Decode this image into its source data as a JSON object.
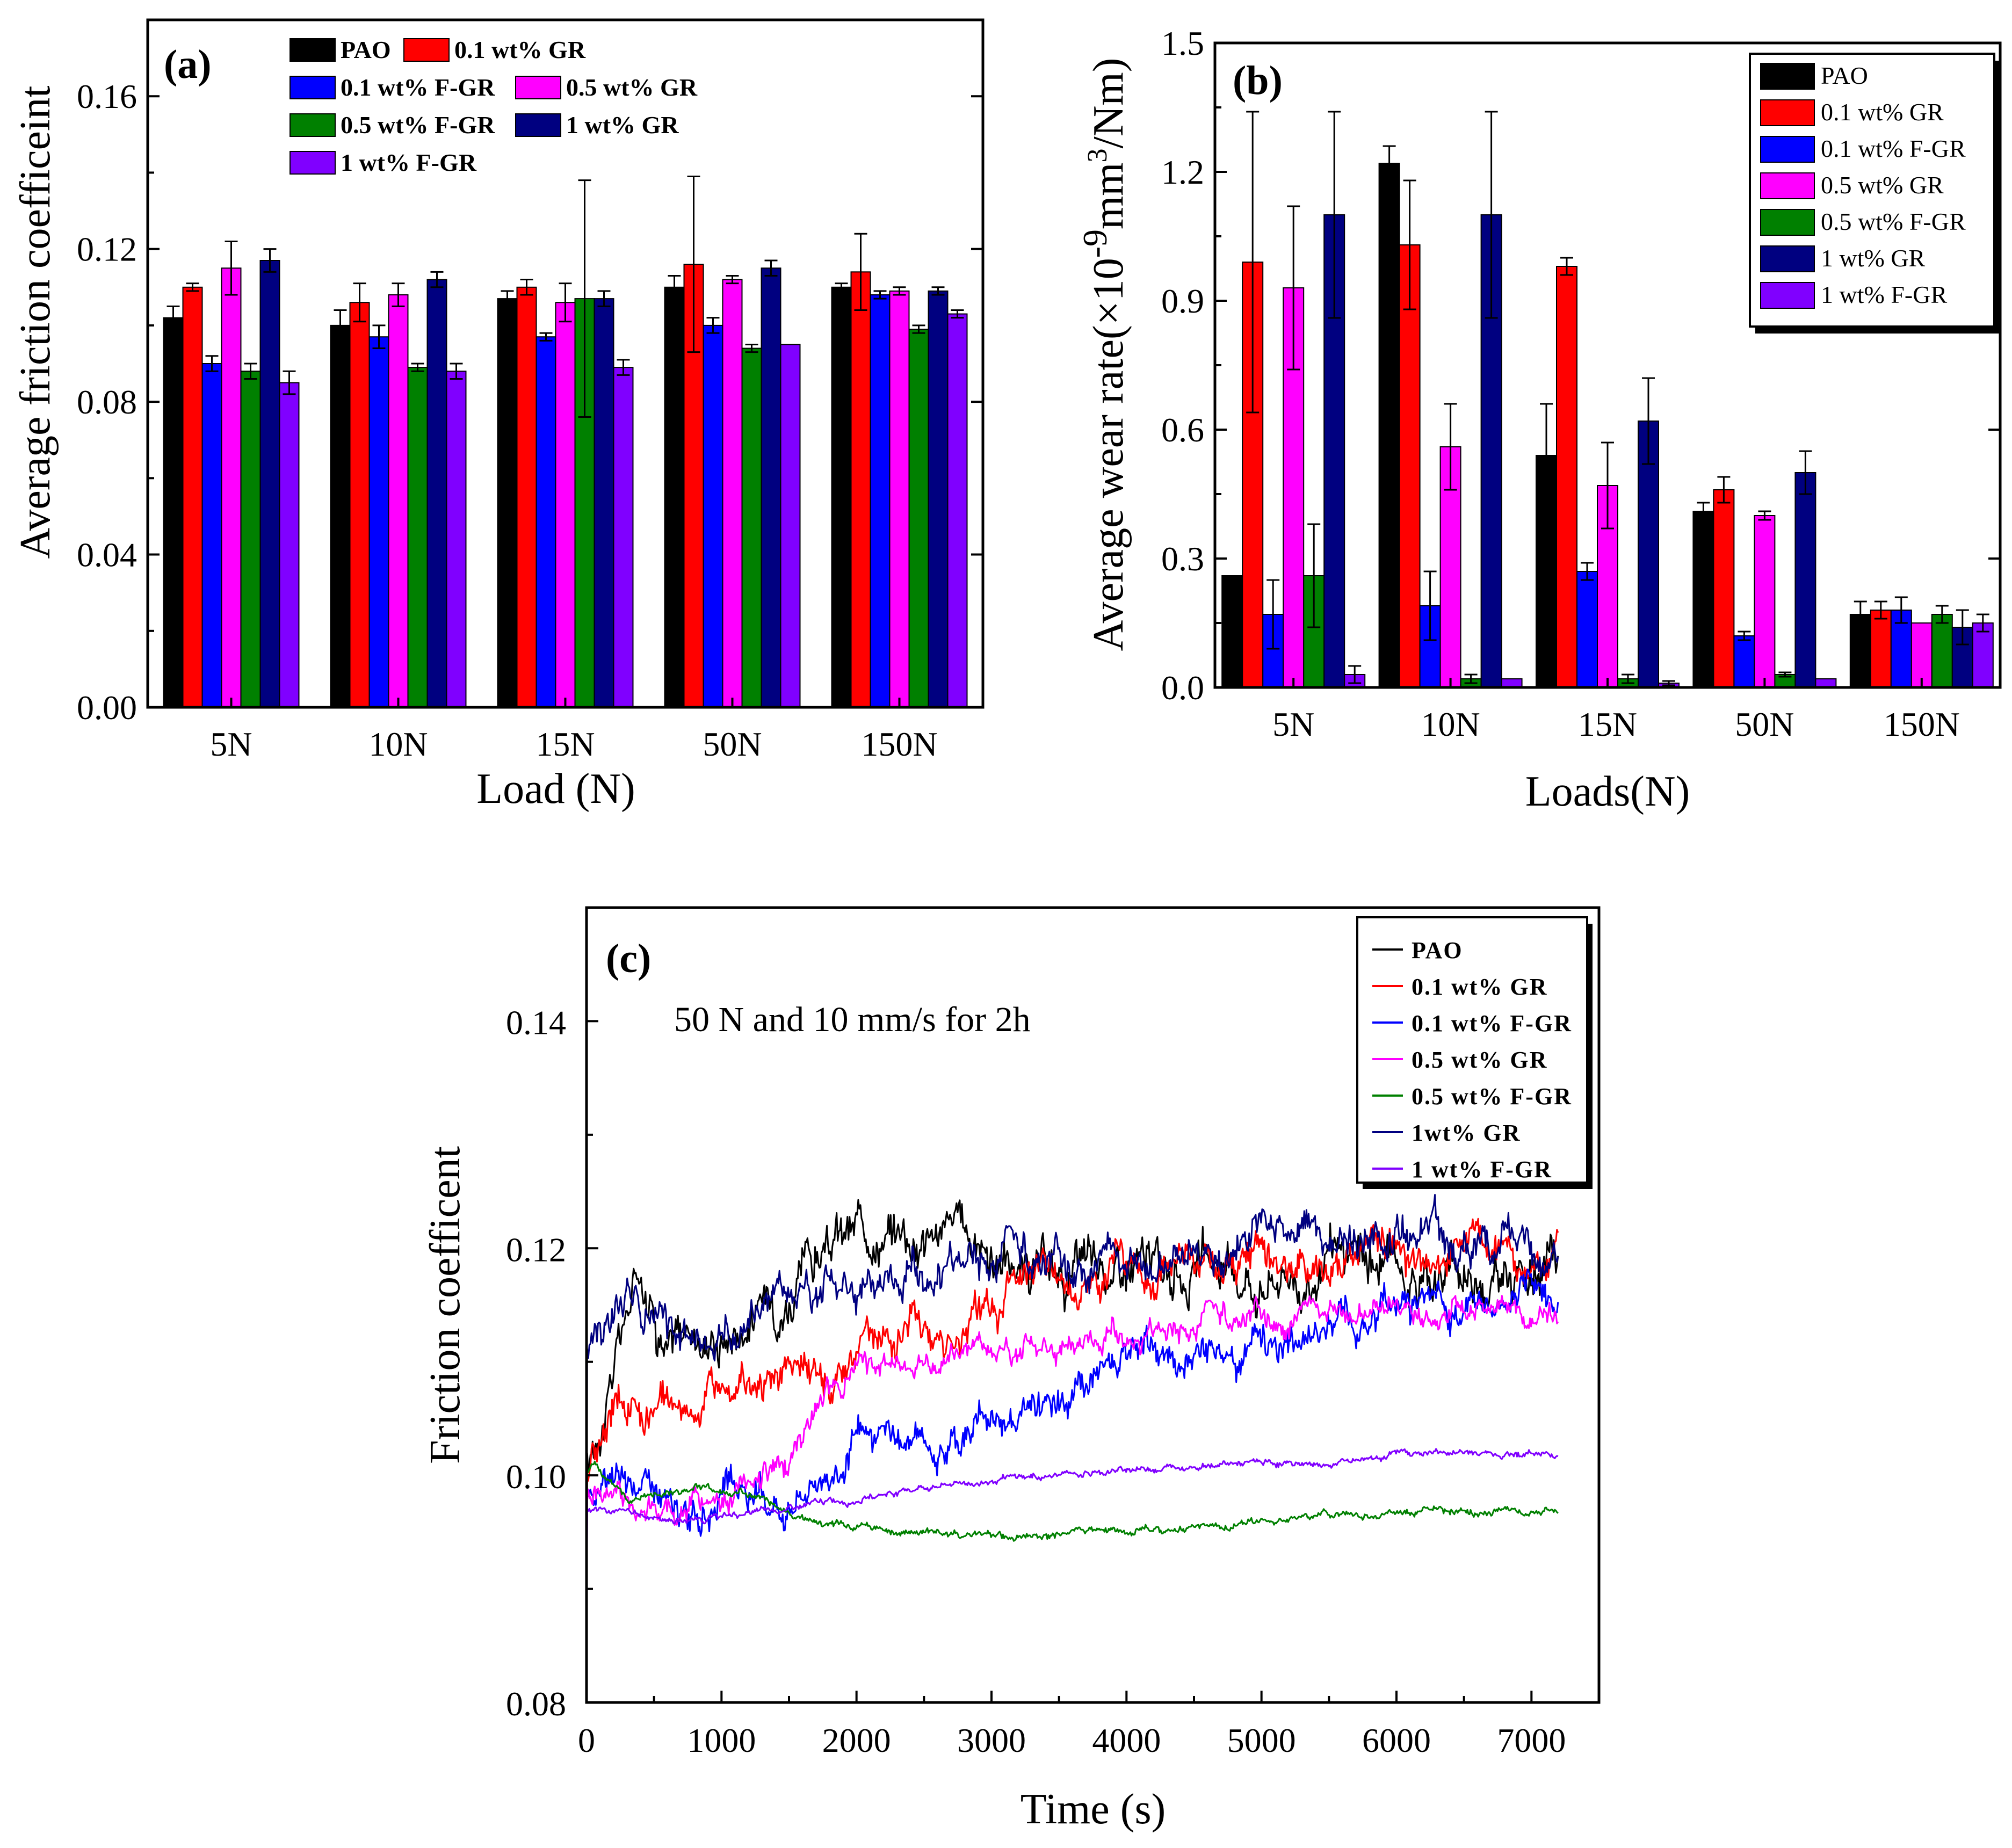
{
  "colors": {
    "PAO": "#000000",
    "0.1 wt% GR": "#ff0000",
    "0.1 wt% F-GR": "#0000ff",
    "0.5 wt% GR": "#ff00ff",
    "0.5 wt% F-GR": "#008000",
    "1 wt% GR": "#000080",
    "1 wt% F-GR": "#8000ff"
  },
  "chart_data": [
    {
      "panel": "(a)",
      "type": "bar",
      "xlabel": "Load (N)",
      "ylabel": "Average friction coefficeint",
      "ylim": [
        0.0,
        0.18
      ],
      "yticks": [
        "0.00",
        "0.04",
        "0.08",
        "0.12",
        "0.16"
      ],
      "categories": [
        "5N",
        "10N",
        "15N",
        "50N",
        "150N"
      ],
      "legend_labels": [
        "PAO",
        "0.1 wt% GR",
        "0.1 wt% F-GR",
        "0.5 wt% GR",
        "0.5 wt% F-GR",
        "1 wt% GR",
        "1 wt% F-GR"
      ],
      "legend_position": "top",
      "series": [
        {
          "name": "PAO",
          "values": [
            0.102,
            0.1,
            0.107,
            0.11,
            0.11
          ],
          "errors": [
            0.003,
            0.004,
            0.002,
            0.003,
            0.001
          ]
        },
        {
          "name": "0.1 wt% GR",
          "values": [
            0.11,
            0.106,
            0.11,
            0.116,
            0.114
          ],
          "errors": [
            0.001,
            0.005,
            0.002,
            0.023,
            0.01
          ]
        },
        {
          "name": "0.1 wt% F-GR",
          "values": [
            0.09,
            0.097,
            0.097,
            0.1,
            0.108
          ],
          "errors": [
            0.002,
            0.003,
            0.001,
            0.002,
            0.001
          ]
        },
        {
          "name": "0.5 wt% GR",
          "values": [
            0.115,
            0.108,
            0.106,
            0.112,
            0.109
          ],
          "errors": [
            0.007,
            0.003,
            0.005,
            0.001,
            0.001
          ]
        },
        {
          "name": "0.5 wt% F-GR",
          "values": [
            0.088,
            0.089,
            0.107,
            0.094,
            0.099
          ],
          "errors": [
            0.002,
            0.001,
            0.031,
            0.001,
            0.001
          ]
        },
        {
          "name": "1 wt% GR",
          "values": [
            0.117,
            0.112,
            0.107,
            0.115,
            0.109
          ],
          "errors": [
            0.003,
            0.002,
            0.002,
            0.002,
            0.001
          ]
        },
        {
          "name": "1 wt% F-GR",
          "values": [
            0.085,
            0.088,
            0.089,
            0.095,
            0.103
          ],
          "errors": [
            0.003,
            0.002,
            0.002,
            0.0,
            0.001
          ]
        }
      ]
    },
    {
      "panel": "(b)",
      "type": "bar",
      "xlabel": "Loads(N)",
      "ylabel_prefix": "Average wear rate(×10",
      "ylabel_exp1": "-9",
      "ylabel_mid": "mm",
      "ylabel_exp2": "3",
      "ylabel_suffix": "/Nm)",
      "ylim": [
        0.0,
        1.5
      ],
      "yticks": [
        "0.0",
        "0.3",
        "0.6",
        "0.9",
        "1.2",
        "1.5"
      ],
      "categories": [
        "5N",
        "10N",
        "15N",
        "50N",
        "150N"
      ],
      "legend_labels": [
        "PAO",
        "0.1 wt% GR",
        "0.1 wt% F-GR",
        "0.5 wt% GR",
        "0.5 wt% F-GR",
        "1 wt% GR",
        "1 wt% F-GR"
      ],
      "legend_position": "top-right",
      "series": [
        {
          "name": "PAO",
          "values": [
            0.26,
            1.22,
            0.54,
            0.41,
            0.17
          ],
          "errors": [
            0.0,
            0.04,
            0.12,
            0.02,
            0.03
          ]
        },
        {
          "name": "0.1 wt% GR",
          "values": [
            0.99,
            1.03,
            0.98,
            0.46,
            0.18
          ],
          "errors": [
            0.35,
            0.15,
            0.02,
            0.03,
            0.02
          ]
        },
        {
          "name": "0.1 wt% F-GR",
          "values": [
            0.17,
            0.19,
            0.27,
            0.12,
            0.18
          ],
          "errors": [
            0.08,
            0.08,
            0.02,
            0.01,
            0.03
          ]
        },
        {
          "name": "0.5 wt% GR",
          "values": [
            0.93,
            0.56,
            0.47,
            0.4,
            0.15
          ],
          "errors": [
            0.19,
            0.1,
            0.1,
            0.01,
            0.0
          ]
        },
        {
          "name": "0.5 wt% F-GR",
          "values": [
            0.26,
            0.02,
            0.02,
            0.03,
            0.17
          ],
          "errors": [
            0.12,
            0.01,
            0.01,
            0.005,
            0.02
          ]
        },
        {
          "name": "1 wt% GR",
          "values": [
            1.1,
            1.1,
            0.62,
            0.5,
            0.14
          ],
          "errors": [
            0.24,
            0.24,
            0.1,
            0.05,
            0.04
          ]
        },
        {
          "name": "1 wt% F-GR",
          "values": [
            0.03,
            0.02,
            0.01,
            0.02,
            0.15
          ],
          "errors": [
            0.02,
            0.0,
            0.005,
            0.0,
            0.02
          ]
        }
      ]
    },
    {
      "panel": "(c)",
      "type": "line",
      "xlabel": "Time (s)",
      "ylabel": "Friction coefficent",
      "annotation": "50 N and 10 mm/s for 2h",
      "xlim": [
        0,
        7500
      ],
      "ylim": [
        0.08,
        0.15
      ],
      "xticks": [
        "0",
        "1000",
        "2000",
        "3000",
        "4000",
        "5000",
        "6000",
        "7000"
      ],
      "yticks": [
        "0.08",
        "0.10",
        "0.12",
        "0.14"
      ],
      "legend_labels": [
        "PAO",
        "0.1 wt% GR",
        "0.1 wt% F-GR",
        "0.5 wt% GR",
        "0.5 wt% F-GR",
        "1wt% GR",
        "1 wt% F-GR"
      ],
      "legend_position": "top-right",
      "series": [
        {
          "name": "PAO",
          "x": [
            0,
            200,
            400,
            600,
            1000,
            1400,
            1800,
            2200,
            2600,
            3000,
            3400,
            4000,
            5000,
            6000,
            7200
          ],
          "y": [
            0.1,
            0.11,
            0.119,
            0.112,
            0.113,
            0.116,
            0.12,
            0.122,
            0.122,
            0.12,
            0.117,
            0.118,
            0.118,
            0.118,
            0.118
          ],
          "noise": 0.0022
        },
        {
          "name": "0.1 wt% GR",
          "x": [
            0,
            200,
            500,
            800,
            1200,
            1600,
            2000,
            2500,
            3000,
            3500,
            4000,
            5000,
            6000,
            7200
          ],
          "y": [
            0.1,
            0.106,
            0.106,
            0.107,
            0.108,
            0.109,
            0.111,
            0.113,
            0.115,
            0.117,
            0.117,
            0.118,
            0.119,
            0.119
          ],
          "noise": 0.0018
        },
        {
          "name": "0.1 wt% F-GR",
          "x": [
            0,
            100,
            400,
            700,
            1000,
            1400,
            1800,
            2200,
            2600,
            3000,
            3500,
            4000,
            4500,
            5000,
            6000,
            7200
          ],
          "y": [
            0.098,
            0.098,
            0.1,
            0.096,
            0.097,
            0.098,
            0.101,
            0.103,
            0.103,
            0.106,
            0.106,
            0.11,
            0.111,
            0.112,
            0.115,
            0.116
          ],
          "noise": 0.0016
        },
        {
          "name": "0.5 wt% GR",
          "x": [
            0,
            300,
            700,
            1000,
            1300,
            1600,
            2000,
            2400,
            3000,
            3500,
            4000,
            4500,
            5000,
            6000,
            7200
          ],
          "y": [
            0.098,
            0.098,
            0.097,
            0.098,
            0.1,
            0.104,
            0.109,
            0.11,
            0.111,
            0.112,
            0.113,
            0.113,
            0.114,
            0.115,
            0.114
          ],
          "noise": 0.0012
        },
        {
          "name": "0.5 wt% F-GR",
          "x": [
            0,
            60,
            300,
            800,
            1300,
            1700,
            2400,
            3300,
            4000,
            5000,
            6000,
            7200
          ],
          "y": [
            0.1,
            0.101,
            0.098,
            0.099,
            0.098,
            0.096,
            0.095,
            0.0945,
            0.095,
            0.096,
            0.097,
            0.097
          ],
          "noise": 0.00035
        },
        {
          "name": "1wt% GR",
          "x": [
            0,
            100,
            300,
            500,
            800,
            1200,
            1600,
            2000,
            2500,
            3000,
            3500,
            4000,
            4500,
            5000,
            6000,
            7200
          ],
          "y": [
            0.112,
            0.113,
            0.114,
            0.113,
            0.112,
            0.114,
            0.117,
            0.118,
            0.119,
            0.119,
            0.119,
            0.119,
            0.12,
            0.121,
            0.12,
            0.12
          ],
          "noise": 0.0018
        },
        {
          "name": "1 wt% F-GR",
          "x": [
            0,
            100,
            700,
            1500,
            2500,
            3500,
            4500,
            5500,
            6000,
            7200
          ],
          "y": [
            0.097,
            0.097,
            0.096,
            0.097,
            0.099,
            0.1,
            0.101,
            0.101,
            0.102,
            0.102
          ],
          "noise": 0.0003
        }
      ]
    }
  ]
}
